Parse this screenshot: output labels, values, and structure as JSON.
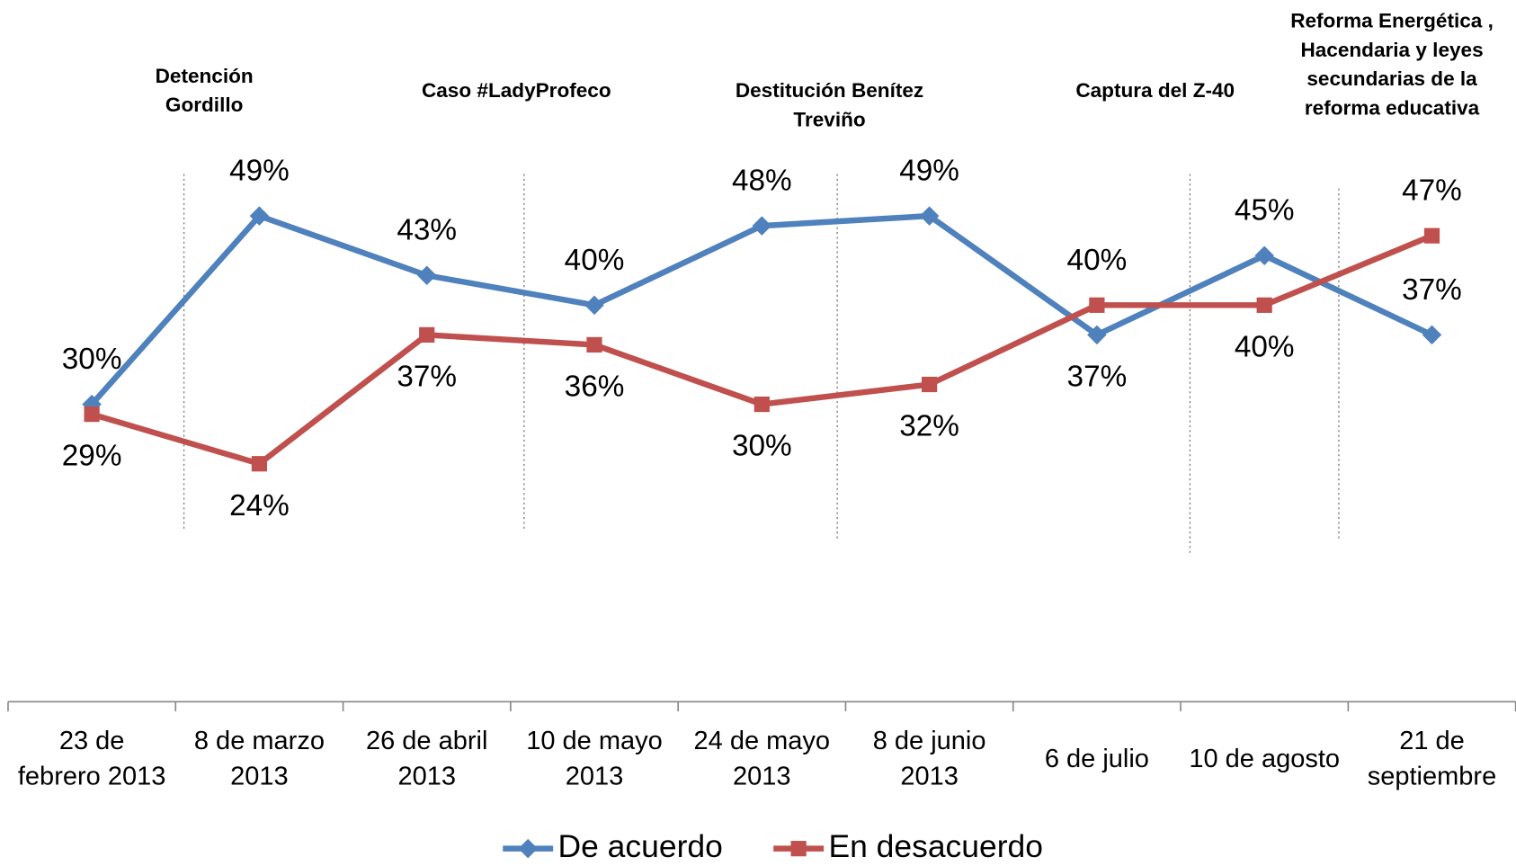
{
  "chart_data": {
    "type": "line",
    "categories": [
      "23 de\nfebrero 2013",
      "8 de marzo\n2013",
      "26 de abril\n2013",
      "10 de mayo\n2013",
      "24 de mayo\n2013",
      "8 de junio\n2013",
      "6 de julio",
      "10 de agosto",
      "21 de\nseptiembre"
    ],
    "series": [
      {
        "name": "De acuerdo",
        "color": "#4f81bd",
        "marker": "diamond",
        "values": [
          30,
          49,
          43,
          40,
          48,
          49,
          37,
          45,
          37
        ],
        "value_labels": [
          "30%",
          "49%",
          "43%",
          "40%",
          "48%",
          "49%",
          "37%",
          "45%",
          "37%"
        ]
      },
      {
        "name": "En desacuerdo",
        "color": "#c0504d",
        "marker": "square",
        "values": [
          29,
          24,
          37,
          36,
          30,
          32,
          40,
          40,
          47
        ],
        "value_labels": [
          "29%",
          "24%",
          "37%",
          "36%",
          "30%",
          "32%",
          "40%",
          "40%",
          "47%"
        ]
      }
    ],
    "annotations": [
      "Detención\nGordillo",
      "Caso #LadyProfeco",
      "Destitución Benítez\nTreviño",
      "Captura del Z-40",
      "Reforma Energética ,\nHacendaria y leyes\nsecundarias de la\nreforma educativa"
    ],
    "ylim": [
      0,
      70
    ],
    "legend": "bottom"
  }
}
